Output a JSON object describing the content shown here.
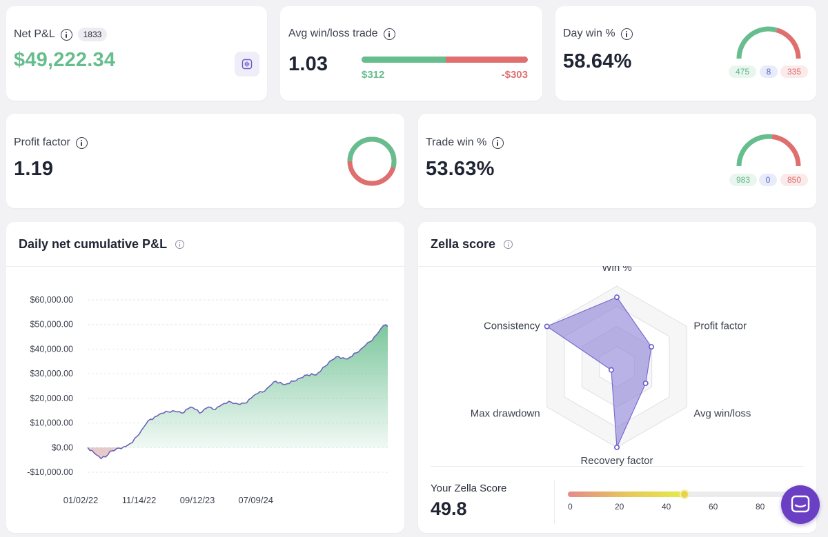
{
  "net_pnl": {
    "label": "Net P&L",
    "badge": "1833",
    "value": "$49,222.34",
    "action_icon": "waveform-icon"
  },
  "avg_win_loss": {
    "label": "Avg win/loss trade",
    "value": "1.03",
    "win": "$312",
    "loss": "-$303",
    "win_share": 0.507
  },
  "day_win": {
    "label": "Day win %",
    "value": "58.64%",
    "wins": "475",
    "even": "8",
    "losses": "335",
    "win_fraction": 0.5864
  },
  "profit_factor": {
    "label": "Profit factor",
    "value": "1.19",
    "win_fraction": 0.543
  },
  "trade_win": {
    "label": "Trade win %",
    "value": "53.63%",
    "wins": "983",
    "even": "0",
    "losses": "850",
    "win_fraction": 0.5363
  },
  "cumulative_pnl": {
    "title": "Daily net cumulative P&L",
    "chart_data": {
      "type": "area",
      "y_ticks": [
        60000,
        50000,
        40000,
        30000,
        20000,
        10000,
        0,
        -10000
      ],
      "y_tick_labels": [
        "$60,000.00",
        "$50,000.00",
        "$40,000.00",
        "$30,000.00",
        "$20,000.00",
        "$10,000.00",
        "$0.00",
        "-$10,000.00"
      ],
      "ylim": [
        -10000,
        60000
      ],
      "x_tick_labels": [
        "01/02/22",
        "11/14/22",
        "09/12/23",
        "07/09/24"
      ],
      "x_tick_positions": [
        0,
        0.2,
        0.4,
        0.6
      ],
      "series": [
        {
          "values": [
            0,
            -1200,
            -3000,
            -4500,
            -3800,
            -1500,
            -1200,
            -200,
            300,
            1000,
            2000,
            4500,
            7000,
            9500,
            11500,
            12500,
            13500,
            14000,
            14500,
            15000,
            14500,
            14000,
            15500,
            16500,
            15500,
            14000,
            15500,
            16500,
            15500,
            16500,
            17500,
            18000,
            18500,
            18000,
            17500,
            18000,
            19500,
            21000,
            22000,
            22500,
            24000,
            25500,
            27000,
            26500,
            25500,
            26000,
            27000,
            28000,
            28500,
            29500,
            30000,
            29500,
            31000,
            33000,
            35000,
            36000,
            37000,
            36500,
            36000,
            37000,
            38500,
            40000,
            41500,
            43000,
            45000,
            47000,
            49500,
            49222
          ]
        }
      ],
      "colors": {
        "line": "#6a63b8",
        "fill_top": "#66bd8d",
        "negative_fill": "#e3a0a8"
      }
    }
  },
  "zella": {
    "title": "Zella score",
    "chart_data": {
      "type": "radar",
      "axes": [
        "Win %",
        "Profit factor",
        "Avg win/loss",
        "Recovery factor",
        "Max drawdown",
        "Consistency"
      ],
      "values": [
        0.85,
        0.45,
        0.36,
        1.0,
        0.0,
        1.0
      ],
      "rmax": 1
    },
    "score_label": "Your Zella Score",
    "score": "49.8",
    "scale": {
      "value": 49.8,
      "min": 0,
      "max": 100,
      "ticks": [
        "0",
        "20",
        "40",
        "60",
        "80"
      ]
    }
  },
  "chat_icon": "chat-bubble-icon",
  "colors": {
    "green": "#66bd8d",
    "red": "#df6f6f",
    "purple": "#6a5acd"
  }
}
